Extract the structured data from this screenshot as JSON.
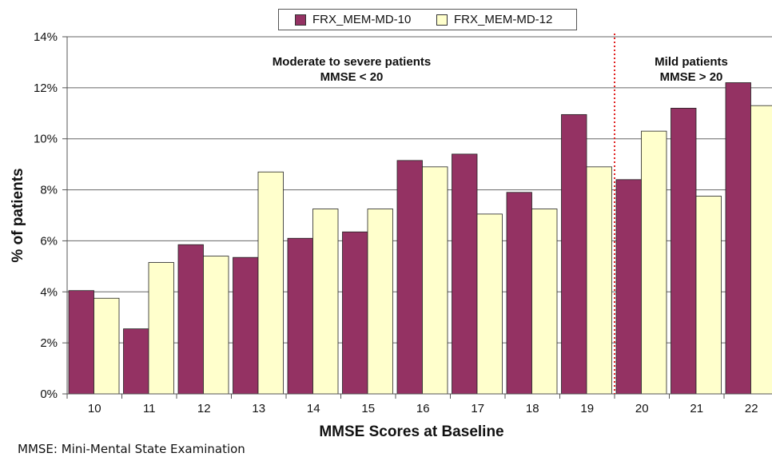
{
  "chart_data": {
    "type": "bar",
    "categories": [
      "10",
      "11",
      "12",
      "13",
      "14",
      "15",
      "16",
      "17",
      "18",
      "19",
      "20",
      "21",
      "22"
    ],
    "series": [
      {
        "name": "FRX_MEM-MD-10",
        "color": "#943263",
        "values": [
          4.05,
          2.55,
          5.85,
          5.35,
          6.1,
          6.35,
          9.15,
          9.4,
          7.9,
          10.95,
          8.4,
          11.2,
          12.2
        ]
      },
      {
        "name": "FRX_MEM-MD-12",
        "color": "#ffffcc",
        "values": [
          3.75,
          5.15,
          5.4,
          8.7,
          7.25,
          7.25,
          8.9,
          7.05,
          7.25,
          8.9,
          10.3,
          7.75,
          11.3
        ]
      }
    ],
    "xlabel": "MMSE Scores at Baseline",
    "ylabel": "% of patients",
    "ylim": [
      0,
      14
    ],
    "yticks": [
      "0%",
      "2%",
      "4%",
      "6%",
      "8%",
      "10%",
      "12%",
      "14%"
    ],
    "grid": true,
    "legend_position": "top-center",
    "divider_after_category": "19",
    "annotations": [
      {
        "line1": "Moderate to severe patients",
        "line2": "MMSE < 20"
      },
      {
        "line1": "Mild patients",
        "line2": "MMSE > 20"
      }
    ]
  },
  "footnote": "MMSE: Mini-Mental State Examination"
}
